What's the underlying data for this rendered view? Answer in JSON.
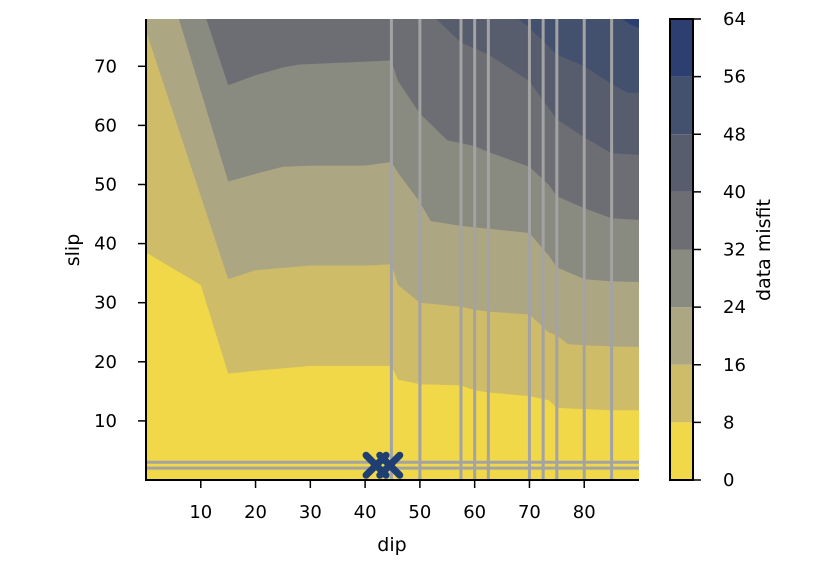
{
  "chart_data": {
    "type": "contour",
    "xlabel": "dip",
    "ylabel": "slip",
    "x_ticks": [
      10,
      20,
      30,
      40,
      50,
      60,
      70,
      80
    ],
    "y_ticks": [
      10,
      20,
      30,
      40,
      50,
      60,
      70
    ],
    "xlim": [
      0,
      90
    ],
    "ylim": [
      0,
      78
    ],
    "colorbar": {
      "label": "data misfit",
      "ticks": [
        0,
        8,
        16,
        24,
        32,
        40,
        48,
        56,
        64
      ],
      "levels": [
        0,
        8,
        16,
        24,
        32,
        40,
        48,
        56,
        64
      ],
      "colors": [
        "#f0d848",
        "#cfbc68",
        "#ada682",
        "#898a80",
        "#6c6e73",
        "#585d6e",
        "#43506e",
        "#2d3f70",
        "#10276a"
      ]
    },
    "contour_lines": [
      {
        "level": 8,
        "points": [
          [
            0,
            38.5
          ],
          [
            10,
            33
          ],
          [
            15,
            18
          ],
          [
            20,
            18.5
          ],
          [
            30,
            19.3
          ],
          [
            40,
            19.3
          ],
          [
            44.8,
            19.3
          ],
          [
            46,
            17
          ],
          [
            50,
            16.2
          ],
          [
            57.5,
            16
          ],
          [
            60,
            15.2
          ],
          [
            62.5,
            14.8
          ],
          [
            70,
            14.2
          ],
          [
            73.5,
            13.5
          ],
          [
            75,
            12.2
          ],
          [
            80,
            12
          ],
          [
            85,
            11.8
          ],
          [
            90,
            11.8
          ]
        ]
      },
      {
        "level": 16,
        "points": [
          [
            0,
            76
          ],
          [
            10,
            48
          ],
          [
            15,
            34
          ],
          [
            20,
            35.5
          ],
          [
            30,
            36.3
          ],
          [
            40,
            36.3
          ],
          [
            44.8,
            36.5
          ],
          [
            46,
            33
          ],
          [
            50,
            30
          ],
          [
            57.5,
            29.3
          ],
          [
            60,
            28.8
          ],
          [
            62.5,
            28.5
          ],
          [
            70,
            28
          ],
          [
            73.5,
            25
          ],
          [
            75,
            24.5
          ],
          [
            77,
            23
          ],
          [
            80,
            22.8
          ],
          [
            85,
            22.6
          ],
          [
            90,
            22.5
          ]
        ]
      },
      {
        "level": 24,
        "points": [
          [
            6,
            78
          ],
          [
            15,
            50.5
          ],
          [
            20,
            51.8
          ],
          [
            25,
            53
          ],
          [
            30,
            53.2
          ],
          [
            40,
            53.2
          ],
          [
            44.8,
            53.8
          ],
          [
            46,
            52
          ],
          [
            50,
            47
          ],
          [
            52,
            43.8
          ],
          [
            57.5,
            43
          ],
          [
            62.5,
            42.5
          ],
          [
            70,
            41.8
          ],
          [
            73.5,
            38
          ],
          [
            75,
            36
          ],
          [
            80,
            34
          ],
          [
            85,
            33.6
          ],
          [
            90,
            33.5
          ]
        ]
      },
      {
        "level": 32,
        "points": [
          [
            11,
            78
          ],
          [
            15,
            66.8
          ],
          [
            20,
            68.5
          ],
          [
            25,
            69.8
          ],
          [
            28,
            70.3
          ],
          [
            40,
            70.8
          ],
          [
            44.8,
            71
          ],
          [
            46,
            67.5
          ],
          [
            50,
            62
          ],
          [
            55,
            57.5
          ],
          [
            60,
            56.5
          ],
          [
            62.5,
            55.5
          ],
          [
            70,
            53
          ],
          [
            73.5,
            50
          ],
          [
            75,
            48
          ],
          [
            80,
            46
          ],
          [
            85,
            44.3
          ],
          [
            90,
            44
          ]
        ]
      },
      {
        "level": 40,
        "points": [
          [
            53,
            78
          ],
          [
            57.5,
            74
          ],
          [
            62.5,
            72
          ],
          [
            70,
            67.5
          ],
          [
            75,
            61
          ],
          [
            80,
            58
          ],
          [
            85,
            55.3
          ],
          [
            90,
            55
          ]
        ]
      },
      {
        "level": 48,
        "points": [
          [
            68,
            78
          ],
          [
            70,
            76.5
          ],
          [
            75,
            72
          ],
          [
            80,
            70
          ],
          [
            85,
            67
          ],
          [
            88,
            65.5
          ],
          [
            90,
            65.5
          ]
        ]
      },
      {
        "level": 56,
        "points": [
          [
            87,
            78
          ],
          [
            88.5,
            77
          ],
          [
            90,
            76.5
          ]
        ]
      }
    ],
    "vertical_lines_x": [
      44.8,
      50,
      57.5,
      60,
      62.5,
      70,
      72.5,
      75,
      80,
      85
    ],
    "horizontal_lines_y": [
      2,
      3
    ],
    "markers": [
      {
        "x": 42,
        "y": 2.5,
        "symbol": "X"
      },
      {
        "x": 44.5,
        "y": 2.5,
        "symbol": "X"
      }
    ]
  }
}
